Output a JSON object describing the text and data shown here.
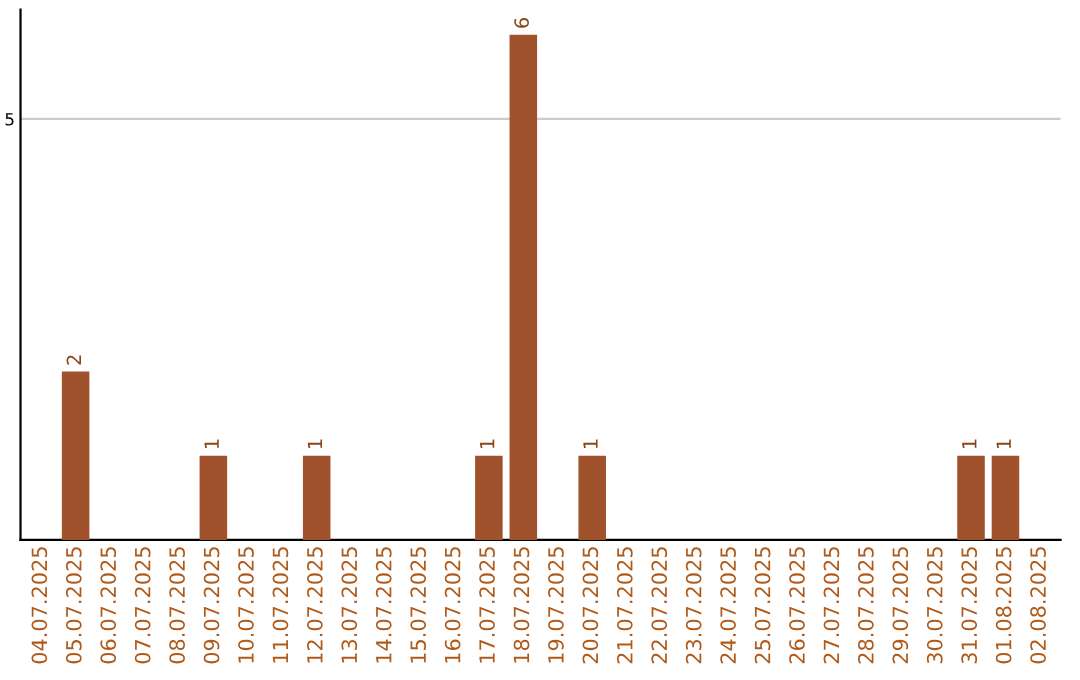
{
  "chart_data": {
    "type": "bar",
    "categories": [
      "04.07.2025",
      "05.07.2025",
      "06.07.2025",
      "07.07.2025",
      "08.07.2025",
      "09.07.2025",
      "10.07.2025",
      "11.07.2025",
      "12.07.2025",
      "13.07.2025",
      "14.07.2025",
      "15.07.2025",
      "16.07.2025",
      "17.07.2025",
      "18.07.2025",
      "19.07.2025",
      "20.07.2025",
      "21.07.2025",
      "22.07.2025",
      "23.07.2025",
      "24.07.2025",
      "25.07.2025",
      "26.07.2025",
      "27.07.2025",
      "28.07.2025",
      "29.07.2025",
      "30.07.2025",
      "31.07.2025",
      "01.08.2025",
      "02.08.2025"
    ],
    "values": [
      0,
      2,
      0,
      0,
      0,
      1,
      0,
      0,
      1,
      0,
      0,
      0,
      0,
      1,
      6,
      0,
      1,
      0,
      0,
      0,
      0,
      0,
      0,
      0,
      0,
      0,
      0,
      1,
      1,
      0
    ],
    "value_labels": [
      null,
      "2",
      null,
      null,
      null,
      "1",
      null,
      null,
      "1",
      null,
      null,
      null,
      null,
      "1",
      "6",
      null,
      "1",
      null,
      null,
      null,
      null,
      null,
      null,
      null,
      null,
      null,
      null,
      "1",
      "1",
      null
    ],
    "color": "#a0522d",
    "ylim": [
      0,
      6.3
    ],
    "yticks": [
      5
    ],
    "grid": "y"
  }
}
